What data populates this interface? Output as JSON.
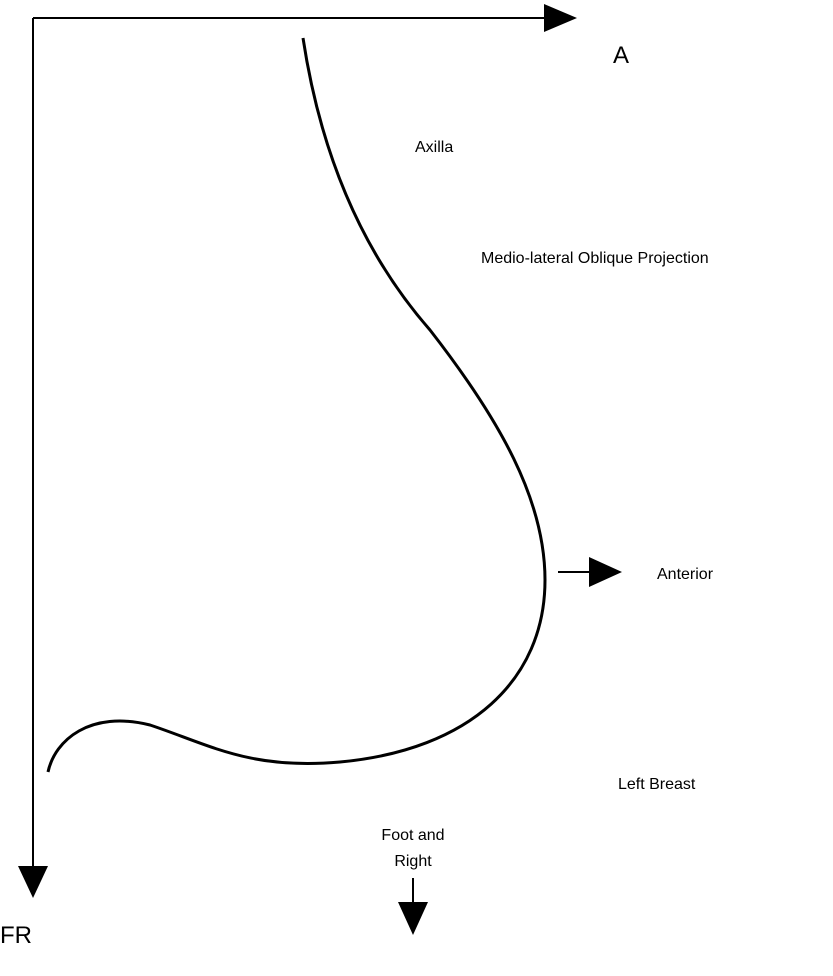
{
  "axes": {
    "horizontal": "A",
    "vertical": "FR"
  },
  "labels": {
    "axilla": "Axilla",
    "projection": "Medio-lateral Oblique Projection",
    "anterior": "Anterior",
    "side": "Left Breast",
    "foot_line1": "Foot and",
    "foot_line2": "Right"
  }
}
